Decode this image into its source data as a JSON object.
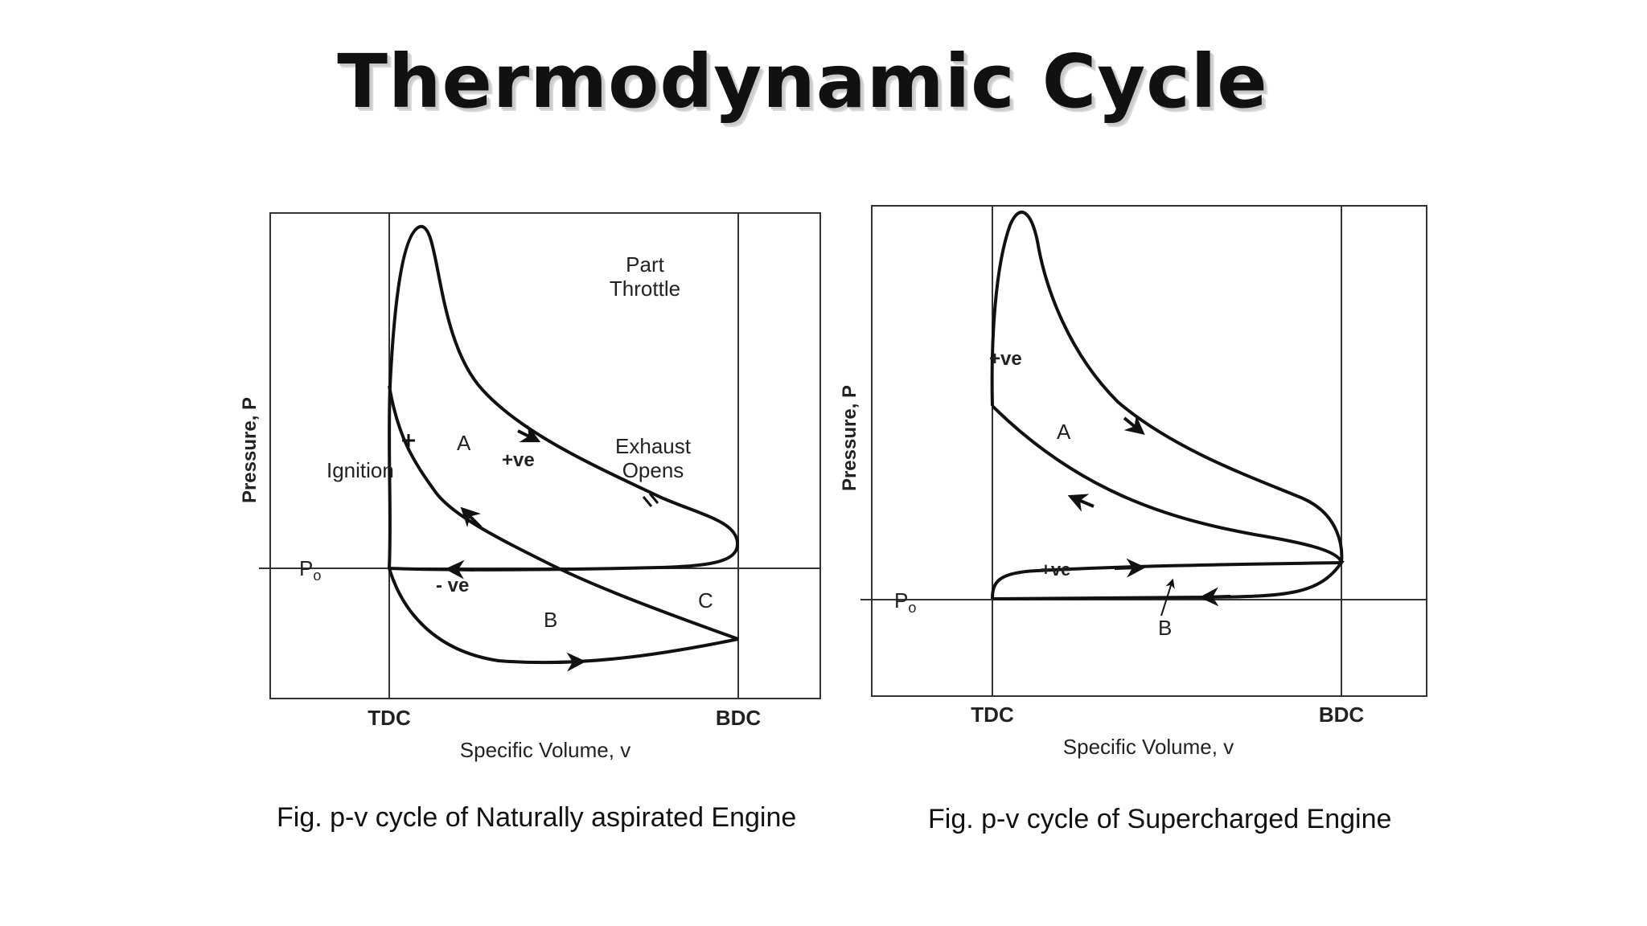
{
  "slide": {
    "title": "Thermodynamic Cycle"
  },
  "left_diagram": {
    "y_axis_label": "Pressure, P",
    "x_axis_label": "Specific Volume, v",
    "tdc_label": "TDC",
    "bdc_label": "BDC",
    "p0_label": "P",
    "p0_subscript": "o",
    "part_throttle_line1": "Part",
    "part_throttle_line2": "Throttle",
    "exhaust_line1": "Exhaust",
    "exhaust_line2": "Opens",
    "ignition_label": "Ignition",
    "region_a": "A",
    "region_b": "B",
    "region_c": "C",
    "positive_work": "+ve",
    "negative_work": "- ve",
    "caption": "Fig. p-v cycle of Naturally aspirated Engine"
  },
  "right_diagram": {
    "y_axis_label": "Pressure, P",
    "x_axis_label": "Specific Volume, v",
    "tdc_label": "TDC",
    "bdc_label": "BDC",
    "p0_label": "P",
    "p0_subscript": "o",
    "region_a": "A",
    "region_b": "B",
    "positive_work_top": "+ve",
    "positive_work_loop": "+ve",
    "caption": "Fig. p-v cycle of Supercharged Engine"
  }
}
